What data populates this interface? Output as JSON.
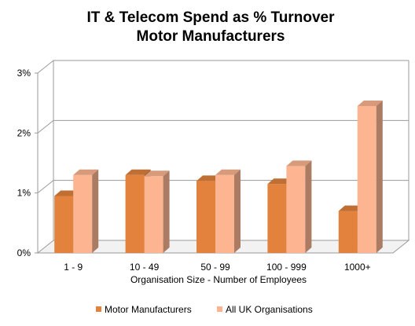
{
  "chart_data": {
    "type": "bar",
    "title": "IT & Telecom Spend as % Turnover",
    "subtitle": "Motor Manufacturers",
    "xlabel": "Organisation Size - Number of Employees",
    "ylabel": "",
    "categories": [
      "1 - 9",
      "10 - 49",
      "50 - 99",
      "100 - 999",
      "1000+"
    ],
    "y_ticks": [
      "0%",
      "1%",
      "2%",
      "3%"
    ],
    "ylim": [
      0,
      3
    ],
    "grid": true,
    "legend_position": "bottom",
    "series": [
      {
        "name": "Motor Manufacturers",
        "color": "#e2823d",
        "values": [
          0.95,
          1.3,
          1.2,
          1.15,
          0.7
        ]
      },
      {
        "name": "All UK Organisations",
        "color": "#fdb591",
        "values": [
          1.3,
          1.28,
          1.3,
          1.45,
          2.45
        ]
      }
    ]
  }
}
